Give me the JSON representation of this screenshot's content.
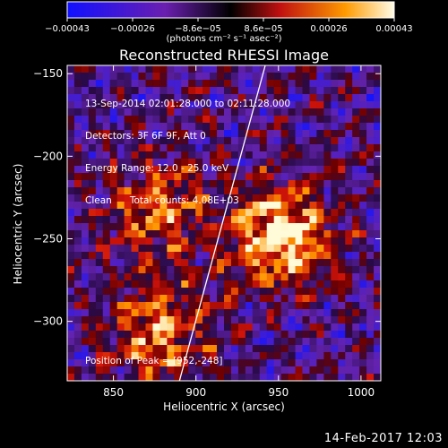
{
  "chart_data": {
    "type": "heatmap",
    "title": "Reconstructed RHESSI Image",
    "xlabel": "Heliocentric X (arcsec)",
    "ylabel": "Heliocentric Y (arcsec)",
    "xlim": [
      822,
      1012
    ],
    "ylim": [
      -336,
      -145
    ],
    "x_ticks": [
      850,
      900,
      950,
      1000
    ],
    "y_ticks": [
      -150,
      -200,
      -250,
      -300
    ],
    "colorbar": {
      "range": [
        -0.00043,
        0.00043
      ],
      "ticks": [
        "−0.00043",
        "−0.00026",
        "−8.6e−05",
        "8.6e−05",
        "0.00026",
        "0.00043"
      ],
      "unit": "(photons cm⁻² s⁻¹ asec⁻²)"
    },
    "sources": [
      {
        "x": 877,
        "y": -232,
        "intensity": 0.00026
      },
      {
        "x": 952,
        "y": -248,
        "intensity": 0.00043
      },
      {
        "x": 878,
        "y": -306,
        "intensity": 0.0003
      }
    ],
    "limb_line": [
      [
        890,
        -336
      ],
      [
        942,
        -145
      ]
    ]
  },
  "info": {
    "line1": "13-Sep-2014 02:01:28.000 to 02:11:28.000",
    "line2": "Detectors: 3F 6F 9F, Att 0",
    "line3": "Energy Range: 12.0 - 25.0 keV",
    "line4": "Clean      Total counts: 4.08E+03",
    "peak": "Position of Peak = [952,-248]"
  },
  "footer": {
    "timestamp": "14-Feb-2017 12:03"
  },
  "colors": {
    "background": "#000000",
    "text": "#ffffff"
  }
}
